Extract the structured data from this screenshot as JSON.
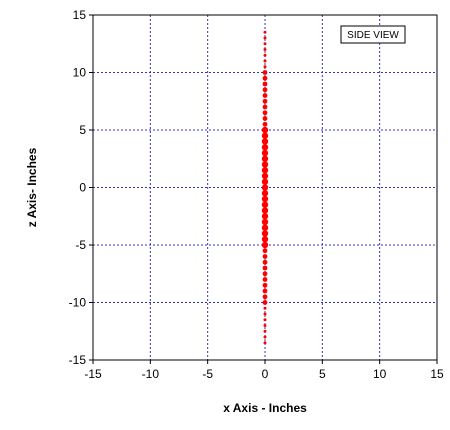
{
  "chart_data": {
    "type": "scatter",
    "title": "",
    "xlabel": "x Axis - Inches",
    "ylabel": "z Axis- Inches",
    "xlim": [
      -15,
      15
    ],
    "ylim": [
      -15,
      15
    ],
    "xticks": [
      "-15",
      "-10",
      "-5",
      "0",
      "5",
      "10",
      "15"
    ],
    "yticks": [
      "15",
      "10",
      "5",
      "0",
      "-5",
      "-10",
      "-15"
    ],
    "grid": true,
    "grid_color": "#3333cc",
    "marker_color": "#ff0000",
    "legend": {
      "text": "SIDE VIEW",
      "placement": "top-right"
    },
    "series": [
      {
        "x": [
          0,
          0,
          0,
          0,
          0,
          0,
          0,
          0,
          0,
          0,
          0,
          0,
          0,
          0,
          0,
          0,
          0,
          0,
          0,
          0,
          0,
          0,
          0,
          0,
          0,
          0,
          0,
          0,
          0,
          0,
          0,
          0,
          0,
          0,
          0,
          0,
          0,
          0,
          0,
          0,
          0,
          0,
          0,
          0,
          0,
          0,
          0,
          0,
          0,
          0,
          0,
          0,
          0,
          0,
          0
        ],
        "y": [
          13.5,
          13,
          12.5,
          12,
          11.5,
          11,
          10.5,
          10,
          9.5,
          9,
          8.5,
          8,
          7.5,
          7,
          6.5,
          6,
          5.5,
          5,
          4.5,
          4,
          3.5,
          3,
          2.5,
          2,
          1.5,
          1,
          0.5,
          0,
          -0.5,
          -1,
          -1.5,
          -2,
          -2.5,
          -3,
          -3.5,
          -4,
          -4.5,
          -5,
          -5.5,
          -6,
          -6.5,
          -7,
          -7.5,
          -8,
          -8.5,
          -9,
          -9.5,
          -10,
          -10.5,
          -11,
          -11.5,
          -12,
          -12.5,
          -13,
          -13.5
        ]
      }
    ]
  }
}
